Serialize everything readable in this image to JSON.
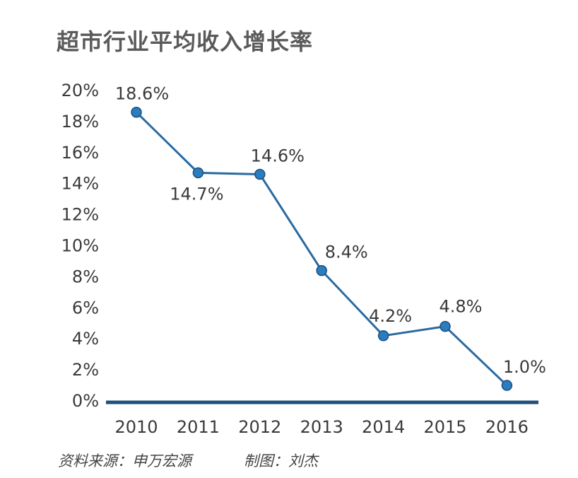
{
  "title": "超市行业平均收入增长率",
  "source_note": "资料来源：申万宏源",
  "credit_note": "制图：刘杰",
  "colors": {
    "line": "#2a6aa0",
    "axis": "#1f4f7a",
    "point": "#2a7dc0"
  },
  "chart_data": {
    "type": "line",
    "title": "超市行业平均收入增长率",
    "xlabel": "",
    "ylabel": "",
    "categories": [
      "2010",
      "2011",
      "2012",
      "2013",
      "2014",
      "2015",
      "2016"
    ],
    "values": [
      18.6,
      14.7,
      14.6,
      8.4,
      4.2,
      4.8,
      1.0
    ],
    "data_labels": [
      "18.6%",
      "14.7%",
      "14.6%",
      "8.4%",
      "4.2%",
      "4.8%",
      "1.0%"
    ],
    "ylim": [
      0,
      20
    ],
    "yticks": [
      "0%",
      "2%",
      "4%",
      "6%",
      "8%",
      "10%",
      "12%",
      "14%",
      "16%",
      "18%",
      "20%"
    ],
    "grid": false,
    "legend": "none"
  }
}
